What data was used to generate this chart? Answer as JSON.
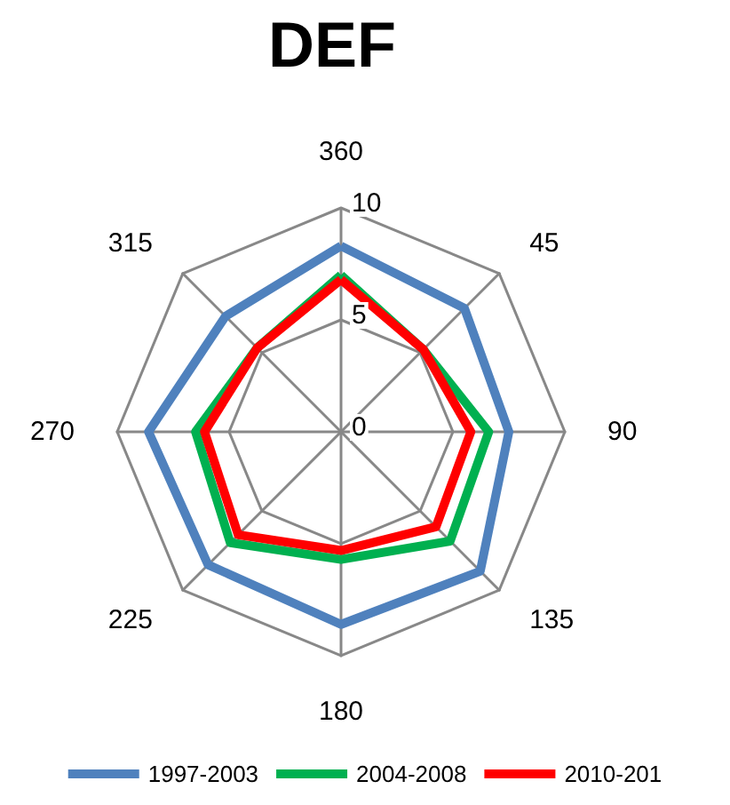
{
  "chart_data": {
    "type": "radar",
    "title": "DEF",
    "categories": [
      "360",
      "45",
      "90",
      "135",
      "180",
      "225",
      "270",
      "315"
    ],
    "ylim": [
      0,
      10
    ],
    "yticks": [
      0,
      5,
      10
    ],
    "legend": "bottom",
    "marker": "none",
    "grid": true,
    "series": [
      {
        "name": "1997-2003",
        "color": "#4f81bd",
        "values": [
          8.3,
          7.8,
          7.5,
          8.8,
          8.6,
          8.4,
          8.6,
          7.3
        ]
      },
      {
        "name": "2004-2008",
        "color": "#00b050",
        "values": [
          7.0,
          5.2,
          6.6,
          6.9,
          5.7,
          7.0,
          6.5,
          5.3
        ]
      },
      {
        "name": "2010-201",
        "color": "#ff0000",
        "values": [
          6.8,
          5.2,
          5.8,
          6.0,
          5.3,
          6.5,
          6.1,
          5.3
        ]
      }
    ]
  }
}
